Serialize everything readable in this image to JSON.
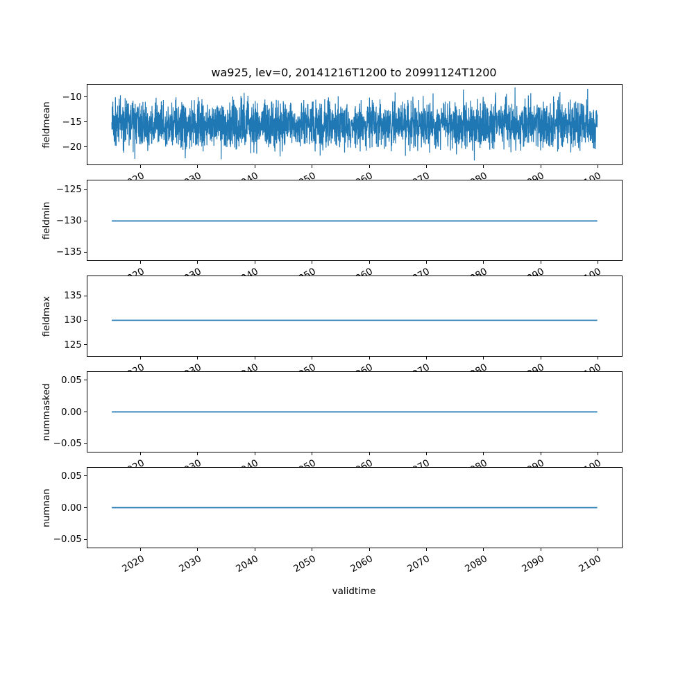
{
  "figure": {
    "title": "wa925, lev=0, 20141216T1200 to 20991124T1200",
    "xlabel": "validtime",
    "line_color": "#1f77b4",
    "background": "#ffffff",
    "xlim": [
      2010.7,
      2104.2
    ],
    "xticks": [
      {
        "v": 2020,
        "label": "2020"
      },
      {
        "v": 2030,
        "label": "2030"
      },
      {
        "v": 2040,
        "label": "2040"
      },
      {
        "v": 2050,
        "label": "2050"
      },
      {
        "v": 2060,
        "label": "2060"
      },
      {
        "v": 2070,
        "label": "2070"
      },
      {
        "v": 2080,
        "label": "2080"
      },
      {
        "v": 2090,
        "label": "2090"
      },
      {
        "v": 2100,
        "label": "2100"
      }
    ]
  },
  "chart_data": [
    {
      "type": "line",
      "ylabel": "fieldmean",
      "ylim": [
        -23.5,
        -7.5
      ],
      "yticks": [
        {
          "v": -10,
          "label": "−10"
        },
        {
          "v": -15,
          "label": "−15"
        },
        {
          "v": -20,
          "label": "−20"
        }
      ],
      "series": {
        "name": "fieldmean",
        "kind": "noise",
        "x_start": 2014.96,
        "x_end": 2099.9,
        "mean": -15.6,
        "std": 2.3,
        "min": -23.3,
        "max": -7.9,
        "points": 3200,
        "seed": 20141216
      }
    },
    {
      "type": "line",
      "ylabel": "fieldmin",
      "ylim": [
        -136.3,
        -123.5
      ],
      "yticks": [
        {
          "v": -125,
          "label": "−125"
        },
        {
          "v": -130,
          "label": "−130"
        },
        {
          "v": -135,
          "label": "−135"
        }
      ],
      "series": {
        "name": "fieldmin",
        "kind": "constant",
        "x_start": 2014.96,
        "x_end": 2099.9,
        "value": -130
      }
    },
    {
      "type": "line",
      "ylabel": "fieldmax",
      "ylim": [
        122.7,
        139.0
      ],
      "yticks": [
        {
          "v": 135,
          "label": "135"
        },
        {
          "v": 130,
          "label": "130"
        },
        {
          "v": 125,
          "label": "125"
        }
      ],
      "series": {
        "name": "fieldmax",
        "kind": "constant",
        "x_start": 2014.96,
        "x_end": 2099.9,
        "value": 130
      }
    },
    {
      "type": "line",
      "ylabel": "nummasked",
      "ylim": [
        -0.063,
        0.063
      ],
      "yticks": [
        {
          "v": 0.05,
          "label": "0.05"
        },
        {
          "v": 0.0,
          "label": "0.00"
        },
        {
          "v": -0.05,
          "label": "−0.05"
        }
      ],
      "series": {
        "name": "nummasked",
        "kind": "constant",
        "x_start": 2014.96,
        "x_end": 2099.9,
        "value": 0
      }
    },
    {
      "type": "line",
      "ylabel": "numnan",
      "ylim": [
        -0.063,
        0.063
      ],
      "yticks": [
        {
          "v": 0.05,
          "label": "0.05"
        },
        {
          "v": 0.0,
          "label": "0.00"
        },
        {
          "v": -0.05,
          "label": "−0.05"
        }
      ],
      "series": {
        "name": "numnan",
        "kind": "constant",
        "x_start": 2014.96,
        "x_end": 2099.9,
        "value": 0
      }
    }
  ]
}
